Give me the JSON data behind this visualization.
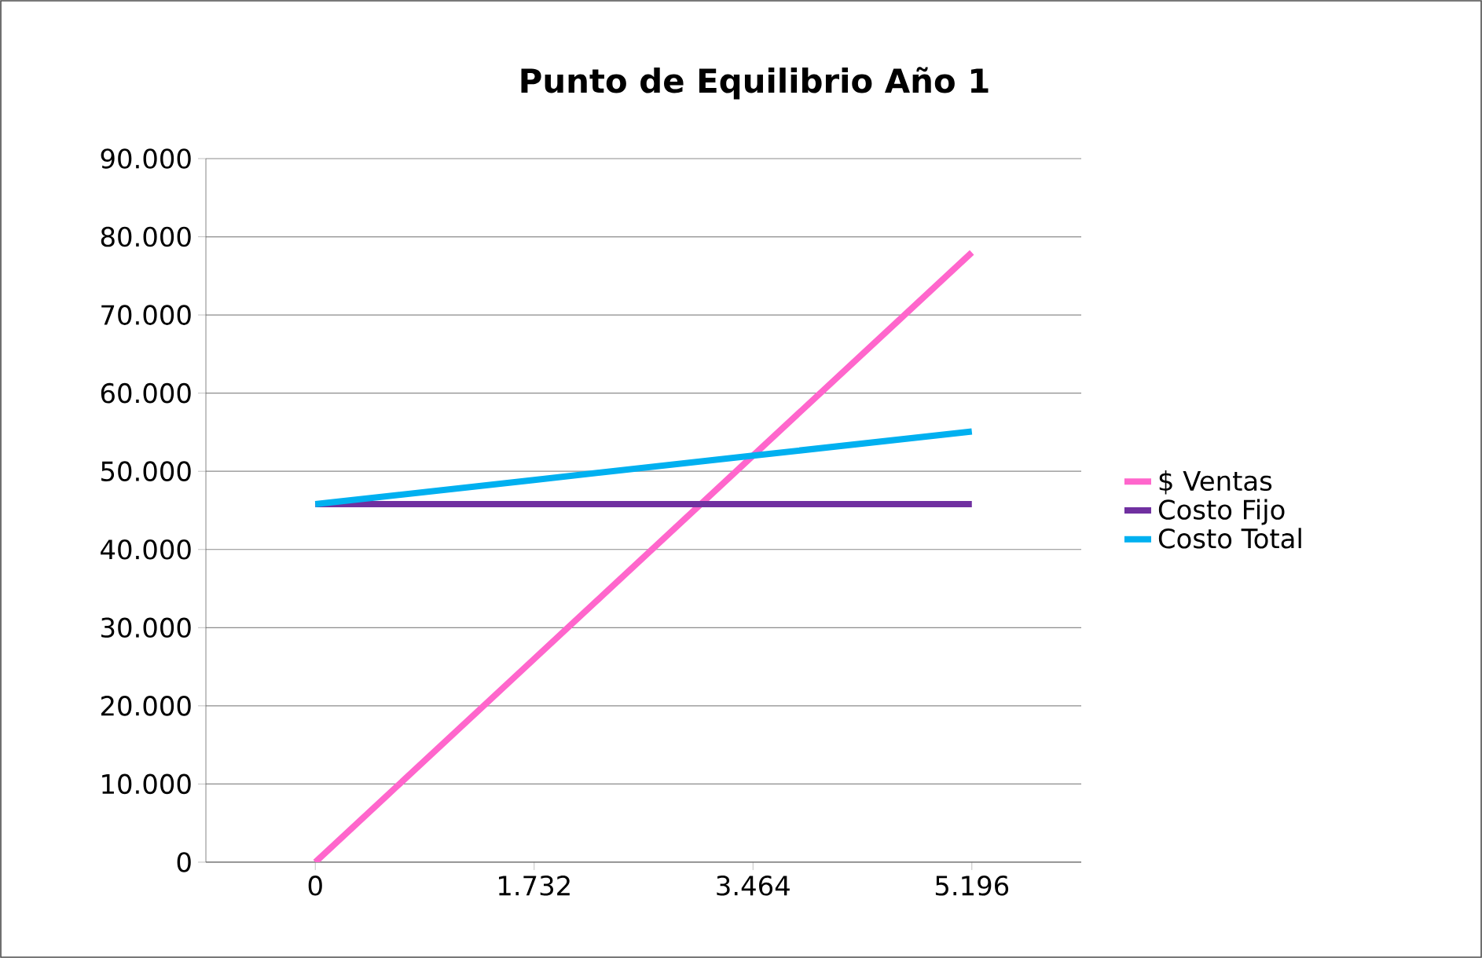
{
  "chart_data": {
    "type": "line",
    "title": "Punto de Equilibrio  Año 1",
    "categories": [
      "0",
      "1.732",
      "3.464",
      "5.196"
    ],
    "series": [
      {
        "name": "$ Ventas",
        "color": "#ff66cc",
        "values": [
          0,
          26000,
          52000,
          78000
        ]
      },
      {
        "name": "Costo Fijo",
        "color": "#7030a0",
        "values": [
          45800,
          45800,
          45800,
          45800
        ]
      },
      {
        "name": "Costo Total",
        "color": "#00b0f0",
        "values": [
          45800,
          48900,
          52000,
          55100
        ]
      }
    ],
    "ylim": [
      0,
      90000
    ],
    "yticks": [
      0,
      {
        "value": 10000,
        "label": "10.000"
      },
      {
        "value": 20000,
        "label": "20.000"
      },
      {
        "value": 30000,
        "label": "30.000"
      },
      {
        "value": 40000,
        "label": "40.000"
      },
      {
        "value": 50000,
        "label": "50.000"
      },
      {
        "value": 60000,
        "label": "60.000"
      },
      {
        "value": 70000,
        "label": "70.000"
      },
      {
        "value": 80000,
        "label": "80.000"
      },
      {
        "value": 90000,
        "label": "90.000"
      }
    ],
    "grid": "y",
    "legend": "right",
    "marker": "none",
    "line_style": "solid"
  }
}
